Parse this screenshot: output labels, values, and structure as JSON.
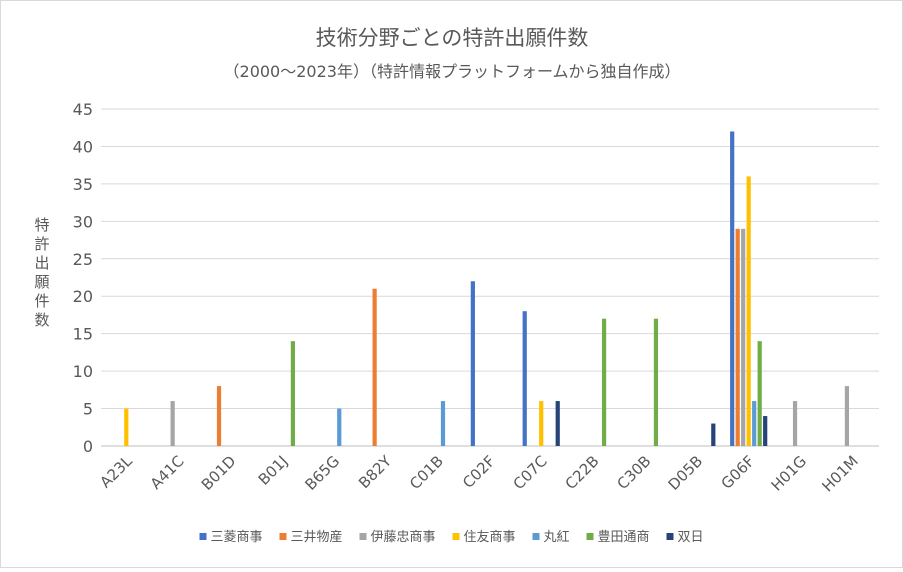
{
  "chart_data": {
    "type": "bar",
    "title": "技術分野ごとの特許出願件数",
    "subtitle": "（2000～2023年）（特許情報プラットフォームから独自作成）",
    "ylabel": "特許出願件数",
    "xlabel": "",
    "ylim": [
      0,
      45
    ],
    "yticks": [
      0,
      5,
      10,
      15,
      20,
      25,
      30,
      35,
      40,
      45
    ],
    "grid": true,
    "legend_position": "bottom",
    "categories": [
      "A23L",
      "A41C",
      "B01D",
      "B01J",
      "B65G",
      "B82Y",
      "C01B",
      "C02F",
      "C07C",
      "C22B",
      "C30B",
      "D05B",
      "G06F",
      "H01G",
      "H01M"
    ],
    "series": [
      {
        "name": "三菱商事",
        "color": "#4472c4",
        "values": [
          0,
          0,
          0,
          0,
          0,
          0,
          0,
          22,
          18,
          0,
          0,
          0,
          42,
          0,
          0
        ]
      },
      {
        "name": "三井物産",
        "color": "#ed7d31",
        "values": [
          0,
          0,
          8,
          0,
          0,
          21,
          0,
          0,
          0,
          0,
          0,
          0,
          29,
          0,
          0
        ]
      },
      {
        "name": "伊藤忠商事",
        "color": "#a5a5a5",
        "values": [
          0,
          6,
          0,
          0,
          0,
          0,
          0,
          0,
          0,
          0,
          0,
          0,
          29,
          6,
          8
        ]
      },
      {
        "name": "住友商事",
        "color": "#ffc000",
        "values": [
          5,
          0,
          0,
          0,
          0,
          0,
          0,
          0,
          6,
          0,
          0,
          0,
          36,
          0,
          0
        ]
      },
      {
        "name": "丸紅",
        "color": "#5b9bd5",
        "values": [
          0,
          0,
          0,
          0,
          5,
          0,
          6,
          0,
          0,
          0,
          0,
          0,
          6,
          0,
          0
        ]
      },
      {
        "name": "豊田通商",
        "color": "#70ad47",
        "values": [
          0,
          0,
          0,
          14,
          0,
          0,
          0,
          0,
          0,
          17,
          17,
          0,
          14,
          0,
          0
        ]
      },
      {
        "name": "双日",
        "color": "#264478",
        "values": [
          0,
          0,
          0,
          0,
          0,
          0,
          0,
          0,
          6,
          0,
          0,
          3,
          4,
          0,
          0
        ]
      }
    ]
  }
}
